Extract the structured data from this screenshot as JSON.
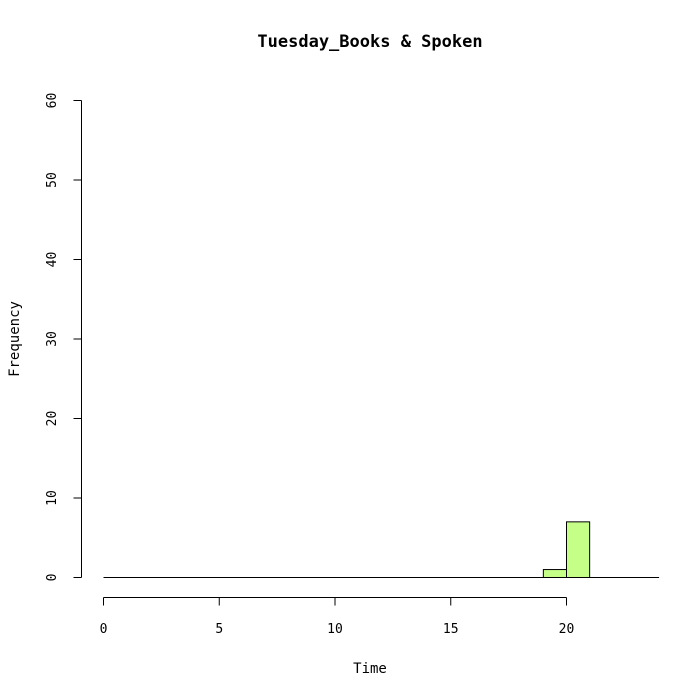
{
  "chart_data": {
    "type": "bar",
    "title": "Tuesday_Books & Spoken",
    "xlabel": "Time",
    "ylabel": "Frequency",
    "xlim": [
      0,
      24
    ],
    "ylim": [
      0,
      60
    ],
    "x_ticks": [
      0,
      5,
      10,
      15,
      20
    ],
    "y_ticks": [
      0,
      10,
      20,
      30,
      40,
      50,
      60
    ],
    "bins": [
      {
        "start": 0,
        "end": 1,
        "value": 0
      },
      {
        "start": 1,
        "end": 2,
        "value": 0
      },
      {
        "start": 2,
        "end": 3,
        "value": 0
      },
      {
        "start": 3,
        "end": 4,
        "value": 0
      },
      {
        "start": 4,
        "end": 5,
        "value": 0
      },
      {
        "start": 5,
        "end": 6,
        "value": 0
      },
      {
        "start": 6,
        "end": 7,
        "value": 0
      },
      {
        "start": 7,
        "end": 8,
        "value": 0
      },
      {
        "start": 8,
        "end": 9,
        "value": 0
      },
      {
        "start": 9,
        "end": 10,
        "value": 0
      },
      {
        "start": 10,
        "end": 11,
        "value": 0
      },
      {
        "start": 11,
        "end": 12,
        "value": 0
      },
      {
        "start": 12,
        "end": 13,
        "value": 0
      },
      {
        "start": 13,
        "end": 14,
        "value": 0
      },
      {
        "start": 14,
        "end": 15,
        "value": 0
      },
      {
        "start": 15,
        "end": 16,
        "value": 0
      },
      {
        "start": 16,
        "end": 17,
        "value": 0
      },
      {
        "start": 17,
        "end": 18,
        "value": 0
      },
      {
        "start": 18,
        "end": 19,
        "value": 0
      },
      {
        "start": 19,
        "end": 20,
        "value": 1
      },
      {
        "start": 20,
        "end": 21,
        "value": 7
      },
      {
        "start": 21,
        "end": 22,
        "value": 0
      },
      {
        "start": 22,
        "end": 23,
        "value": 0
      },
      {
        "start": 23,
        "end": 24,
        "value": 0
      }
    ],
    "bar_color": "#c6ff88",
    "grid": false
  }
}
